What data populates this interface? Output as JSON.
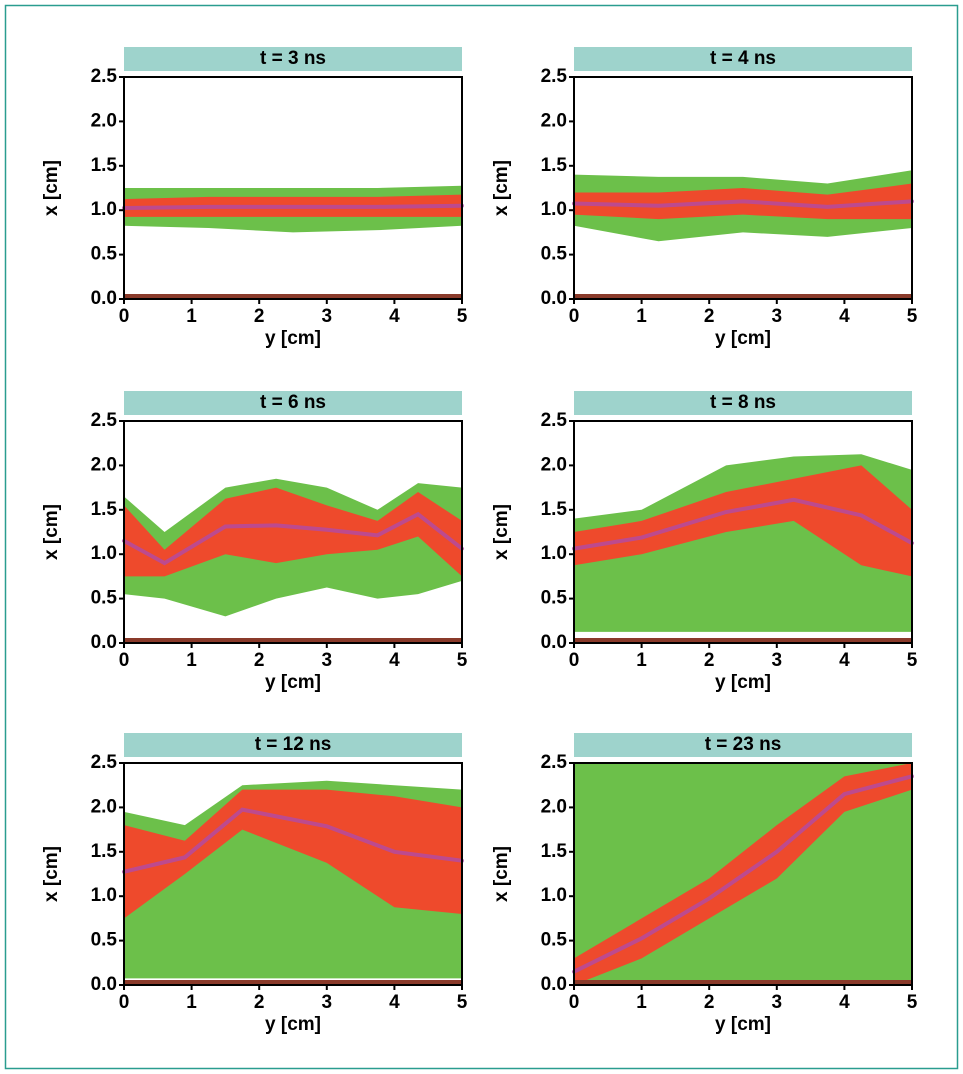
{
  "chart_data": [
    {
      "type": "image",
      "title": "t = 3 ns",
      "xlabel": "y [cm]",
      "ylabel": "x [cm]",
      "xlim": [
        0,
        5
      ],
      "ylim": [
        0,
        2.5
      ],
      "xticks": [
        0,
        1,
        2,
        3,
        4,
        5
      ],
      "yticks": [
        {
          "value": 0,
          "label": "0.0"
        },
        {
          "value": 0.5,
          "label": "0.5"
        },
        {
          "value": 1,
          "label": "1.0"
        },
        {
          "value": 1.5,
          "label": "1.5"
        },
        {
          "value": 2,
          "label": "2.0"
        },
        {
          "value": 2.5,
          "label": "2.5"
        }
      ]
    },
    {
      "type": "image",
      "title": "t = 4 ns",
      "xlabel": "y [cm]",
      "ylabel": "x [cm]",
      "xlim": [
        0,
        5
      ],
      "ylim": [
        0,
        2.5
      ],
      "xticks": [
        0,
        1,
        2,
        3,
        4,
        5
      ],
      "yticks": [
        {
          "value": 0,
          "label": "0.0"
        },
        {
          "value": 0.5,
          "label": "0.5"
        },
        {
          "value": 1,
          "label": "1.0"
        },
        {
          "value": 1.5,
          "label": "1.5"
        },
        {
          "value": 2,
          "label": "2.0"
        },
        {
          "value": 2.5,
          "label": "2.5"
        }
      ]
    },
    {
      "type": "image",
      "title": "t = 6 ns",
      "xlabel": "y [cm]",
      "ylabel": "x [cm]",
      "xlim": [
        0,
        5
      ],
      "ylim": [
        0,
        2.5
      ],
      "xticks": [
        0,
        1,
        2,
        3,
        4,
        5
      ],
      "yticks": [
        {
          "value": 0,
          "label": "0.0"
        },
        {
          "value": 0.5,
          "label": "0.5"
        },
        {
          "value": 1,
          "label": "1.0"
        },
        {
          "value": 1.5,
          "label": "1.5"
        },
        {
          "value": 2,
          "label": "2.0"
        },
        {
          "value": 2.5,
          "label": "2.5"
        }
      ]
    },
    {
      "type": "image",
      "title": "t = 8 ns",
      "xlabel": "y [cm]",
      "ylabel": "x [cm]",
      "xlim": [
        0,
        5
      ],
      "ylim": [
        0,
        2.5
      ],
      "xticks": [
        0,
        1,
        2,
        3,
        4,
        5
      ],
      "yticks": [
        {
          "value": 0,
          "label": "0.0"
        },
        {
          "value": 0.5,
          "label": "0.5"
        },
        {
          "value": 1,
          "label": "1.0"
        },
        {
          "value": 1.5,
          "label": "1.5"
        },
        {
          "value": 2,
          "label": "2.0"
        },
        {
          "value": 2.5,
          "label": "2.5"
        }
      ]
    },
    {
      "type": "image",
      "title": "t = 12 ns",
      "xlabel": "y [cm]",
      "ylabel": "x [cm]",
      "xlim": [
        0,
        5
      ],
      "ylim": [
        0,
        2.5
      ],
      "xticks": [
        0,
        1,
        2,
        3,
        4,
        5
      ],
      "yticks": [
        {
          "value": 0,
          "label": "0.0"
        },
        {
          "value": 0.5,
          "label": "0.5"
        },
        {
          "value": 1,
          "label": "1.0"
        },
        {
          "value": 1.5,
          "label": "1.5"
        },
        {
          "value": 2,
          "label": "2.0"
        },
        {
          "value": 2.5,
          "label": "2.5"
        }
      ]
    },
    {
      "type": "image",
      "title": "t = 23 ns",
      "xlabel": "y [cm]",
      "ylabel": "x [cm]",
      "xlim": [
        0,
        5
      ],
      "ylim": [
        0,
        2.5
      ],
      "xticks": [
        0,
        1,
        2,
        3,
        4,
        5
      ],
      "yticks": [
        {
          "value": 0,
          "label": "0.0"
        },
        {
          "value": 0.5,
          "label": "0.5"
        },
        {
          "value": 1,
          "label": "1.0"
        },
        {
          "value": 1.5,
          "label": "1.5"
        },
        {
          "value": 2,
          "label": "2.0"
        },
        {
          "value": 2.5,
          "label": "2.5"
        }
      ]
    }
  ]
}
